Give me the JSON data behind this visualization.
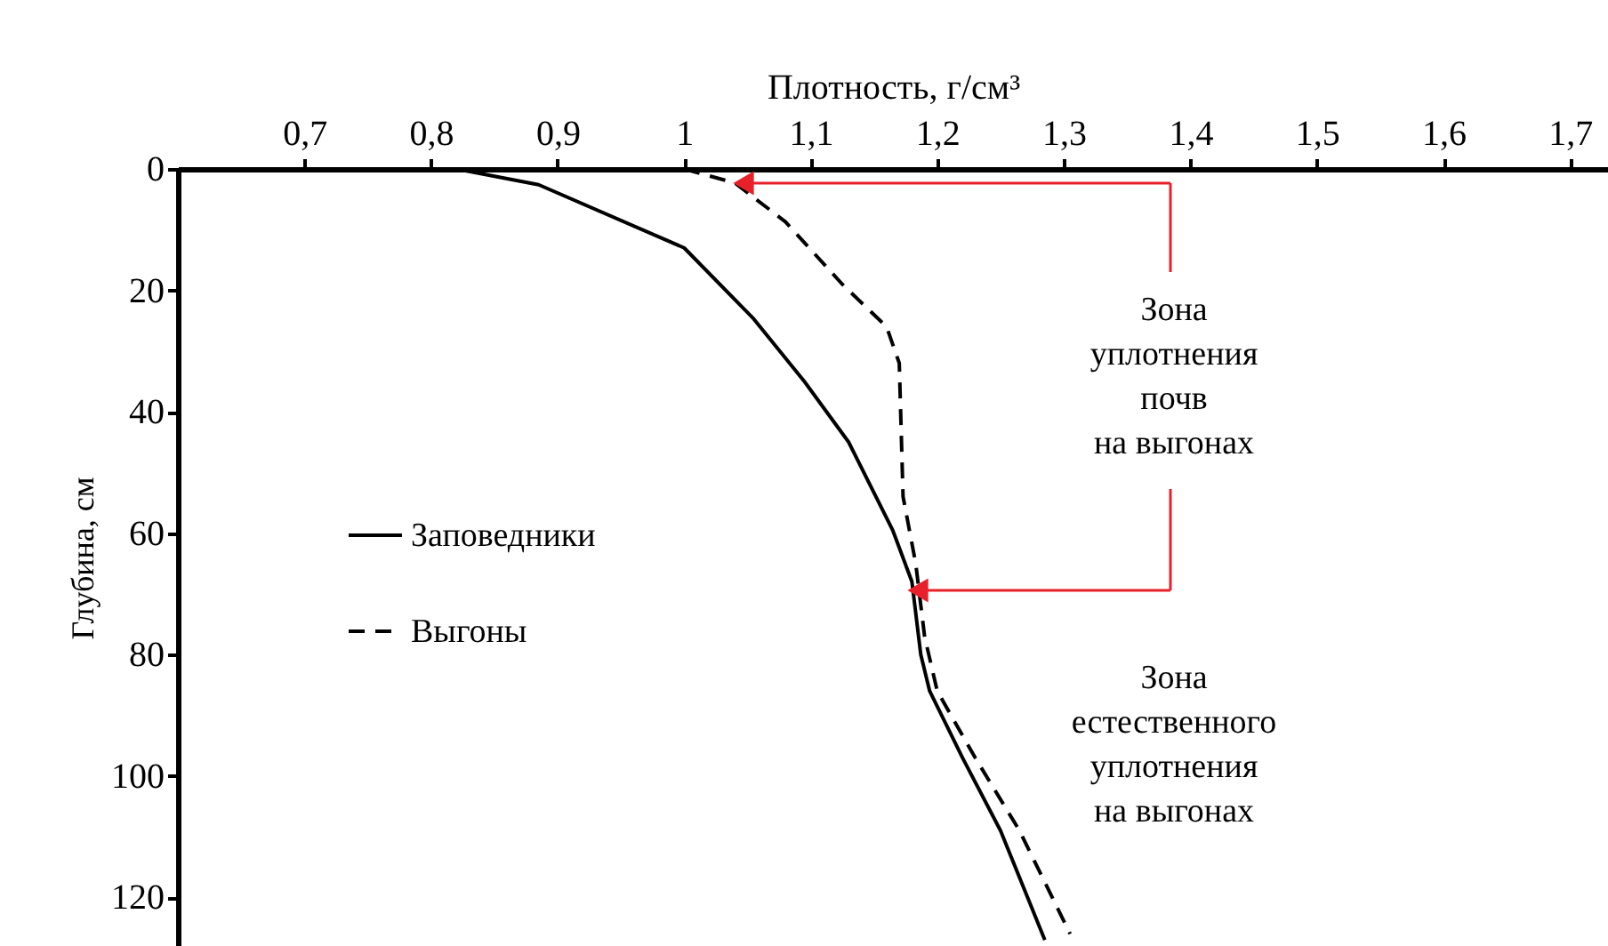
{
  "chart_data": {
    "type": "line",
    "xlabel": "Плотность, г/см³",
    "ylabel": "Глубина, см",
    "xlim": [
      0.6,
      1.73
    ],
    "ylim": [
      128,
      0
    ],
    "xticks": [
      {
        "value": 0.7,
        "label": "0,7"
      },
      {
        "value": 0.8,
        "label": "0,8"
      },
      {
        "value": 0.9,
        "label": "0,9"
      },
      1,
      {
        "value": 1.1,
        "label": "1,1"
      },
      {
        "value": 1.2,
        "label": "1,2"
      },
      {
        "value": 1.3,
        "label": "1,3"
      },
      {
        "value": 1.4,
        "label": "1,4"
      },
      {
        "value": 1.5,
        "label": "1,5"
      },
      {
        "value": 1.6,
        "label": "1,6"
      },
      {
        "value": 1.7,
        "label": "1,7"
      }
    ],
    "yticks": [
      0,
      20,
      40,
      60,
      80,
      100,
      120
    ],
    "grid": false,
    "legend": "left",
    "marker": "none",
    "series": [
      {
        "name": "Заповедники",
        "color": "#000000",
        "line_style": "solid",
        "x": [
          0.82,
          0.885,
          1.0,
          1.055,
          1.095,
          1.13,
          1.165,
          1.18,
          1.187,
          1.194,
          1.22,
          1.25,
          1.285
        ],
        "values": [
          0,
          2.6,
          13,
          24.7,
          35,
          45,
          59.6,
          68,
          80,
          86,
          97,
          109,
          127
        ]
      },
      {
        "name": "Выгоны",
        "color": "#000000",
        "line_style": "dashed",
        "x": [
          1.0,
          1.04,
          1.08,
          1.125,
          1.16,
          1.17,
          1.173,
          1.183,
          1.19,
          1.2,
          1.23,
          1.265,
          1.305
        ],
        "values": [
          0,
          2.3,
          8.7,
          19,
          26,
          32,
          54,
          65,
          77,
          86,
          97,
          109,
          126
        ]
      }
    ],
    "annotations": [
      "Зона\nуплотнения\nпочв\nна выгонах",
      "Зона\nестественного\nуплотнения\nна выгонах"
    ]
  }
}
